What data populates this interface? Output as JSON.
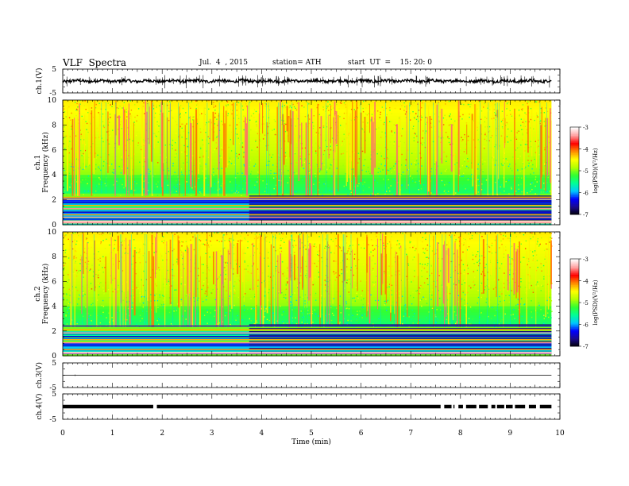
{
  "header": {
    "title": "VLF  Spectra",
    "date": "Jul.  4  , 2015",
    "station": "station= ATH",
    "start": "start  UT  =    15: 20: 0"
  },
  "chart_data": [
    {
      "type": "line",
      "name": "ch1-waveform",
      "ylabel": "ch.1(V)",
      "ylim": [
        -5,
        5
      ],
      "yticks": [
        "5",
        "-5"
      ],
      "x_range": [
        0,
        10
      ],
      "trace_x_range": [
        0,
        9.83
      ],
      "baseline": 0,
      "amplitude": 1.0,
      "spike_amplitude": 2.5
    },
    {
      "type": "heatmap",
      "name": "ch1-spectrogram",
      "ylabel": "ch.1\nFrequency  (kHz)",
      "xlim": [
        0,
        10
      ],
      "data_x_range": [
        0,
        9.83
      ],
      "ylim": [
        0,
        10
      ],
      "yticks": [
        "0",
        "2",
        "4",
        "6",
        "8",
        "10"
      ],
      "lines_khz": [
        0.15,
        0.3,
        0.45,
        0.6,
        0.8,
        1.0,
        1.3,
        1.55,
        1.8,
        2.05,
        2.2
      ],
      "colorbar": {
        "label": "log(PSD)(V²/Hz)",
        "range": [
          -7,
          -3
        ],
        "ticks": [
          "-3",
          "-4",
          "-5",
          "-6",
          "-7"
        ]
      }
    },
    {
      "type": "heatmap",
      "name": "ch2-spectrogram",
      "ylabel": "ch.2\nFrequency  (kHz)",
      "xlim": [
        0,
        10
      ],
      "data_x_range": [
        0,
        9.83
      ],
      "ylim": [
        0,
        10
      ],
      "yticks": [
        "0",
        "2",
        "4",
        "6",
        "8",
        "10"
      ],
      "lines_khz": [
        0.2,
        0.5,
        0.8,
        1.05,
        1.3,
        1.55,
        1.85,
        2.1,
        2.4
      ],
      "colorbar": {
        "label": "log(PSD)(V²/Hz)",
        "range": [
          -7,
          -3
        ],
        "ticks": [
          "-3",
          "-4",
          "-5",
          "-6",
          "-7"
        ]
      }
    },
    {
      "type": "line",
      "name": "ch3-waveform",
      "ylabel": "ch.3(V)",
      "ylim": [
        -5,
        5
      ],
      "yticks": [
        "5",
        "-5"
      ],
      "x_range": [
        0,
        10
      ],
      "trace_x_range": [
        0,
        9.83
      ],
      "baseline": 0,
      "amplitude": 0.05
    },
    {
      "type": "line",
      "name": "ch4-waveform",
      "ylabel": "ch.4(V)",
      "ylim": [
        -5,
        5
      ],
      "yticks": [
        "5",
        "-5"
      ],
      "xlabel": "Time  (min)",
      "xticks": [
        "0",
        "1",
        "2",
        "3",
        "4",
        "5",
        "6",
        "7",
        "8",
        "9",
        "10"
      ],
      "x_range": [
        0,
        10
      ],
      "trace_x_range": [
        0,
        9.83
      ],
      "baseline": 0,
      "band_halfwidth": 0.7,
      "gaps_min": [
        1.82,
        7.6,
        7.82,
        7.88,
        8.05,
        8.32,
        8.55,
        8.7,
        8.88,
        9.05,
        9.3,
        9.52
      ]
    }
  ],
  "colors": {
    "colormap": [
      "#000000",
      "#1a0a8c",
      "#0000ff",
      "#00c8ff",
      "#00ff96",
      "#32ff32",
      "#b4ff00",
      "#ffff00",
      "#ff8c00",
      "#ff0000",
      "#ffa0a0",
      "#ffffff"
    ]
  }
}
